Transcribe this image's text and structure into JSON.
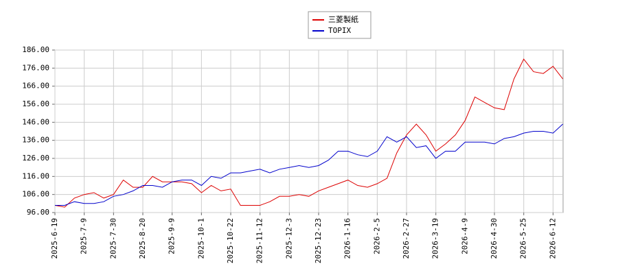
{
  "chart_data": {
    "type": "line",
    "categories": [
      "2025-6-19",
      null,
      null,
      "2025-7-9",
      null,
      null,
      "2025-7-30",
      null,
      null,
      "2025-8-20",
      null,
      null,
      "2025-9-9",
      null,
      null,
      "2025-10-1",
      null,
      null,
      "2025-10-22",
      null,
      null,
      "2025-11-12",
      null,
      null,
      "2025-12-3",
      null,
      null,
      "2025-12-23",
      null,
      null,
      "2026-1-16",
      null,
      null,
      "2026-2-5",
      null,
      null,
      "2026-2-27",
      null,
      null,
      "2026-3-19",
      null,
      null,
      "2026-4-9",
      null,
      null,
      "2026-4-30",
      null,
      null,
      "2026-5-25",
      null,
      null,
      "2026-6-12",
      null
    ],
    "series": [
      {
        "name": "三菱製紙",
        "color": "#dd0000",
        "values": [
          100,
          99,
          104,
          106,
          107,
          104,
          106,
          114,
          110,
          110,
          116,
          113,
          113,
          113,
          112,
          107,
          111,
          108,
          109,
          100,
          100,
          100,
          102,
          105,
          105,
          106,
          105,
          108,
          110,
          112,
          114,
          111,
          110,
          112,
          115,
          129,
          139,
          145,
          139,
          130,
          134,
          139,
          147,
          160,
          157,
          154,
          153,
          170,
          181,
          174,
          173,
          177,
          170
        ]
      },
      {
        "name": "TOPIX",
        "color": "#0000cc",
        "values": [
          100,
          100,
          102,
          101,
          101,
          102,
          105,
          106,
          108,
          111,
          111,
          110,
          113,
          114,
          114,
          111,
          116,
          115,
          118,
          118,
          119,
          120,
          118,
          120,
          121,
          122,
          121,
          122,
          125,
          130,
          130,
          128,
          127,
          130,
          138,
          135,
          138,
          132,
          133,
          126,
          130,
          130,
          135,
          135,
          135,
          134,
          137,
          138,
          140,
          141,
          141,
          140,
          145
        ]
      }
    ],
    "ylim": [
      96,
      186
    ],
    "yticks": [
      {
        "value": 96,
        "label": "96.00"
      },
      {
        "value": 106,
        "label": "106.00"
      },
      {
        "value": 116,
        "label": "116.00"
      },
      {
        "value": 126,
        "label": "126.00"
      },
      {
        "value": 136,
        "label": "136.00"
      },
      {
        "value": 146,
        "label": "146.00"
      },
      {
        "value": 156,
        "label": "156.00"
      },
      {
        "value": 166,
        "label": "166.00"
      },
      {
        "value": 176,
        "label": "176.00"
      },
      {
        "value": 186,
        "label": "186.00"
      }
    ],
    "grid": true
  }
}
